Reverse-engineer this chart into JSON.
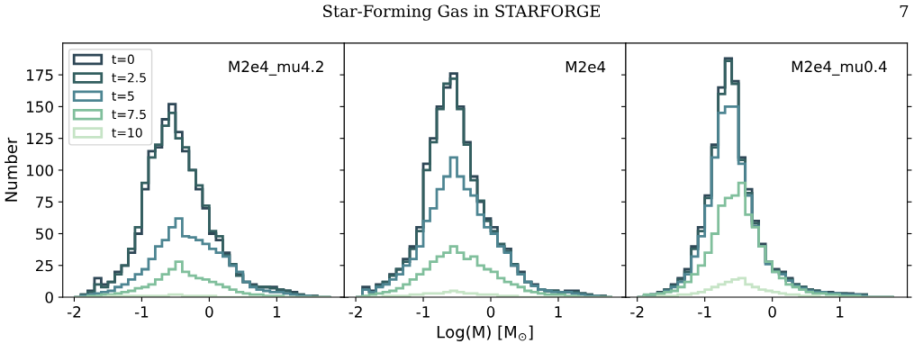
{
  "chart_data": [
    {
      "type": "histogram",
      "ylabel": "Number",
      "annotations": [
        "M2e4_mu4.2",
        "Star-Forming Gas in STARFORGE",
        "7"
      ],
      "legend": "top left",
      "grid": false,
      "bins": [
        -2.0,
        -1.9,
        -1.8,
        -1.7,
        -1.6,
        -1.5,
        -1.4,
        -1.3,
        -1.2,
        -1.1,
        -1.0,
        -0.9,
        -0.8,
        -0.7,
        -0.6,
        -0.5,
        -0.4,
        -0.3,
        -0.2,
        -0.1,
        0.0,
        0.1,
        0.2,
        0.3,
        0.4,
        0.5,
        0.6,
        0.7,
        0.8,
        0.9,
        1.0,
        1.1,
        1.2,
        1.3,
        1.4,
        1.5,
        1.6,
        1.7,
        1.8
      ],
      "xlim": [
        -2.17,
        2.0
      ],
      "ylim": [
        0,
        200
      ],
      "xticks": [
        -2,
        -1,
        0,
        1
      ],
      "yticks": [
        0,
        25,
        50,
        75,
        100,
        125,
        150,
        175
      ],
      "series": [
        {
          "name": "t=0",
          "color": "#2e4756",
          "values": [
            0,
            2,
            5,
            15,
            10,
            12,
            20,
            25,
            35,
            50,
            85,
            115,
            118,
            140,
            152,
            130,
            115,
            100,
            85,
            70,
            50,
            45,
            35,
            25,
            18,
            12,
            10,
            8,
            8,
            8,
            6,
            5,
            4,
            2,
            1,
            1,
            0,
            0
          ]
        },
        {
          "name": "t=2.5",
          "color": "#335f60",
          "values": [
            0,
            2,
            4,
            10,
            8,
            12,
            18,
            25,
            38,
            55,
            90,
            110,
            120,
            135,
            145,
            125,
            118,
            100,
            88,
            72,
            52,
            48,
            33,
            26,
            17,
            12,
            9,
            8,
            8,
            7,
            6,
            5,
            3,
            2,
            1,
            1,
            0,
            0
          ]
        },
        {
          "name": "t=5",
          "color": "#4d8592",
          "values": [
            0,
            1,
            2,
            3,
            4,
            5,
            8,
            10,
            14,
            18,
            22,
            30,
            40,
            45,
            55,
            62,
            48,
            47,
            45,
            42,
            38,
            35,
            32,
            25,
            20,
            12,
            8,
            6,
            5,
            4,
            4,
            3,
            2,
            1,
            1,
            0,
            0,
            0
          ]
        },
        {
          "name": "t=7.5",
          "color": "#80bf9c",
          "values": [
            0,
            0,
            1,
            1,
            2,
            2,
            3,
            4,
            5,
            7,
            8,
            10,
            14,
            18,
            22,
            28,
            20,
            17,
            15,
            14,
            12,
            10,
            8,
            6,
            4,
            3,
            2,
            2,
            1,
            1,
            1,
            0,
            0,
            0,
            0,
            0,
            0,
            0
          ]
        },
        {
          "name": "t=10",
          "color": "#c6e4c6",
          "values": [
            0,
            0,
            0,
            0,
            0,
            1,
            1,
            1,
            1,
            1,
            1,
            1,
            1,
            1,
            2,
            2,
            1,
            1,
            1,
            1,
            1,
            0,
            0,
            0,
            0,
            0,
            0,
            0,
            0,
            0,
            0,
            0,
            0,
            0,
            0,
            0,
            0,
            0
          ]
        }
      ]
    },
    {
      "type": "histogram",
      "xlabel": "Log(M) [M$_{⊙}$]",
      "annotations": [
        "M2e4"
      ],
      "tick_labels": "x",
      "grid": false,
      "bins": [
        -2.0,
        -1.9,
        -1.8,
        -1.7,
        -1.6,
        -1.5,
        -1.4,
        -1.3,
        -1.2,
        -1.1,
        -1.0,
        -0.9,
        -0.8,
        -0.7,
        -0.6,
        -0.5,
        -0.4,
        -0.3,
        -0.2,
        -0.1,
        0.0,
        0.1,
        0.2,
        0.3,
        0.4,
        0.5,
        0.6,
        0.7,
        0.8,
        0.9,
        1.0,
        1.1,
        1.2,
        1.3,
        1.4,
        1.5,
        1.6,
        1.7,
        1.8
      ],
      "xlim": [
        -2.17,
        2.0
      ],
      "ylim": [
        0,
        200
      ],
      "xticks": [
        -2,
        -1,
        0,
        1
      ],
      "yticks": [
        0,
        25,
        50,
        75,
        100,
        125,
        150,
        175
      ],
      "series": [
        {
          "color": "#2e4756",
          "values": [
            0,
            8,
            5,
            10,
            12,
            18,
            22,
            30,
            40,
            55,
            105,
            125,
            150,
            165,
            176,
            150,
            122,
            95,
            75,
            62,
            55,
            40,
            38,
            25,
            20,
            12,
            10,
            6,
            5,
            5,
            4,
            5,
            5,
            3,
            2,
            1,
            1,
            0
          ]
        },
        {
          "color": "#335f60",
          "values": [
            0,
            6,
            4,
            9,
            12,
            17,
            22,
            28,
            38,
            52,
            100,
            122,
            148,
            168,
            172,
            148,
            120,
            92,
            76,
            60,
            52,
            42,
            36,
            26,
            18,
            12,
            9,
            6,
            5,
            5,
            4,
            4,
            4,
            3,
            2,
            1,
            1,
            0
          ]
        },
        {
          "color": "#4d8592",
          "values": [
            0,
            6,
            4,
            8,
            10,
            14,
            18,
            25,
            30,
            40,
            60,
            70,
            85,
            95,
            110,
            95,
            85,
            80,
            65,
            55,
            50,
            40,
            35,
            25,
            18,
            12,
            9,
            6,
            5,
            4,
            4,
            4,
            3,
            2,
            1,
            1,
            0,
            0
          ]
        },
        {
          "color": "#80bf9c",
          "values": [
            0,
            1,
            2,
            3,
            4,
            5,
            7,
            10,
            14,
            18,
            22,
            28,
            32,
            35,
            40,
            35,
            30,
            32,
            25,
            22,
            20,
            15,
            12,
            10,
            8,
            5,
            4,
            3,
            2,
            2,
            2,
            1,
            1,
            0,
            0,
            0,
            0,
            0
          ]
        },
        {
          "color": "#c6e4c6",
          "values": [
            0,
            0,
            0,
            0,
            1,
            1,
            1,
            1,
            2,
            2,
            3,
            3,
            3,
            4,
            5,
            4,
            3,
            3,
            2,
            2,
            2,
            1,
            1,
            1,
            0,
            0,
            0,
            0,
            0,
            0,
            0,
            0,
            0,
            0,
            0,
            0,
            0,
            0
          ]
        }
      ]
    },
    {
      "type": "histogram",
      "annotations": [
        "M2e4_mu0.4"
      ],
      "tick_labels": "x",
      "grid": false,
      "bins": [
        -2.0,
        -1.9,
        -1.8,
        -1.7,
        -1.6,
        -1.5,
        -1.4,
        -1.3,
        -1.2,
        -1.1,
        -1.0,
        -0.9,
        -0.8,
        -0.7,
        -0.6,
        -0.5,
        -0.4,
        -0.3,
        -0.2,
        -0.1,
        0.0,
        0.1,
        0.2,
        0.3,
        0.4,
        0.5,
        0.6,
        0.7,
        0.8,
        0.9,
        1.0,
        1.1,
        1.2,
        1.3,
        1.4,
        1.5,
        1.6,
        1.7,
        1.8
      ],
      "xlim": [
        -2.17,
        2.0
      ],
      "ylim": [
        0,
        200
      ],
      "xticks": [
        -2,
        -1,
        0,
        1
      ],
      "yticks": [
        0,
        25,
        50,
        75,
        100,
        125,
        150,
        175
      ],
      "series": [
        {
          "color": "#2e4756",
          "values": [
            0,
            1,
            2,
            4,
            6,
            10,
            15,
            22,
            40,
            55,
            80,
            120,
            165,
            188,
            170,
            110,
            85,
            60,
            42,
            28,
            22,
            20,
            15,
            10,
            8,
            6,
            5,
            4,
            4,
            3,
            3,
            3,
            2,
            2,
            0,
            0,
            0,
            0
          ]
        },
        {
          "color": "#335f60",
          "values": [
            0,
            1,
            2,
            3,
            6,
            9,
            14,
            20,
            38,
            52,
            78,
            118,
            160,
            186,
            168,
            108,
            82,
            58,
            40,
            27,
            21,
            19,
            14,
            10,
            8,
            6,
            5,
            4,
            3,
            3,
            3,
            2,
            2,
            2,
            0,
            0,
            0,
            0
          ]
        },
        {
          "color": "#4d8592",
          "values": [
            0,
            1,
            2,
            3,
            5,
            8,
            12,
            18,
            32,
            48,
            72,
            110,
            145,
            150,
            150,
            105,
            80,
            56,
            40,
            26,
            20,
            18,
            13,
            9,
            7,
            5,
            4,
            4,
            3,
            3,
            2,
            2,
            2,
            1,
            0,
            0,
            0,
            0
          ]
        },
        {
          "color": "#80bf9c",
          "values": [
            0,
            2,
            2,
            3,
            4,
            5,
            8,
            12,
            18,
            25,
            35,
            50,
            72,
            78,
            80,
            90,
            65,
            55,
            40,
            28,
            20,
            15,
            10,
            8,
            6,
            4,
            3,
            3,
            2,
            2,
            1,
            1,
            1,
            0,
            0,
            0,
            0,
            0
          ]
        },
        {
          "color": "#c6e4c6",
          "values": [
            0,
            0,
            0,
            1,
            1,
            1,
            2,
            2,
            3,
            4,
            6,
            8,
            10,
            12,
            14,
            15,
            10,
            8,
            6,
            5,
            4,
            3,
            2,
            2,
            1,
            1,
            1,
            0,
            0,
            0,
            0,
            0,
            0,
            0,
            0,
            0,
            0,
            0
          ]
        }
      ]
    }
  ]
}
